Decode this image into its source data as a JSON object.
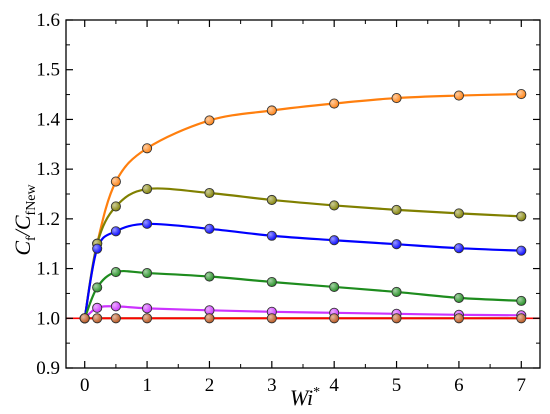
{
  "chart_data": {
    "type": "scatter",
    "xlabel": "Wi",
    "xlabel_sup": "*",
    "ylabel_main": "C",
    "ylabel_sub1": "f",
    "ylabel_slash": "/",
    "ylabel_main2": "C",
    "ylabel_sub2": "fNew",
    "xlim": [
      -0.3,
      7.3
    ],
    "ylim": [
      0.9,
      1.6
    ],
    "xticks": [
      0,
      1,
      2,
      3,
      4,
      5,
      6,
      7
    ],
    "yticks": [
      0.9,
      1.0,
      1.1,
      1.2,
      1.3,
      1.4,
      1.5,
      1.6
    ],
    "ytick_labels": [
      "0.9",
      "1.0",
      "1.1",
      "1.2",
      "1.3",
      "1.4",
      "1.5",
      "1.6"
    ],
    "grid": false,
    "series": [
      {
        "color": "#ff7f0e",
        "x": [
          0,
          0.2,
          0.5,
          1,
          2,
          3,
          4,
          5,
          6,
          7
        ],
        "y": [
          1.0,
          1.15,
          1.275,
          1.342,
          1.398,
          1.418,
          1.432,
          1.443,
          1.448,
          1.451
        ]
      },
      {
        "color": "#808000",
        "x": [
          0,
          0.2,
          0.5,
          1,
          2,
          3,
          4,
          5,
          6,
          7
        ],
        "y": [
          1.0,
          1.15,
          1.225,
          1.26,
          1.252,
          1.238,
          1.227,
          1.218,
          1.211,
          1.205
        ]
      },
      {
        "color": "#0000ff",
        "x": [
          0,
          0.2,
          0.5,
          1,
          2,
          3,
          4,
          5,
          6,
          7
        ],
        "y": [
          1.0,
          1.14,
          1.175,
          1.19,
          1.18,
          1.166,
          1.157,
          1.149,
          1.141,
          1.136
        ]
      },
      {
        "color": "#1e8c1e",
        "x": [
          0,
          0.2,
          0.5,
          1,
          2,
          3,
          4,
          5,
          6,
          7
        ],
        "y": [
          1.0,
          1.062,
          1.093,
          1.091,
          1.084,
          1.073,
          1.063,
          1.053,
          1.041,
          1.035
        ]
      },
      {
        "color": "#cc33ff",
        "x": [
          0,
          0.2,
          0.5,
          1,
          2,
          3,
          4,
          5,
          6,
          7
        ],
        "y": [
          1.0,
          1.021,
          1.024,
          1.02,
          1.016,
          1.013,
          1.011,
          1.009,
          1.007,
          1.006
        ]
      },
      {
        "color": "#b8521a",
        "x": [
          0,
          0.2,
          0.5,
          1,
          2,
          3,
          4,
          5,
          6,
          7
        ],
        "y": [
          1.0,
          1.0,
          1.0,
          1.0,
          1.0,
          1.0,
          1.0,
          1.0,
          1.0,
          1.0
        ]
      }
    ],
    "reference_line": {
      "y": 1.0,
      "color": "#ff0000"
    }
  }
}
